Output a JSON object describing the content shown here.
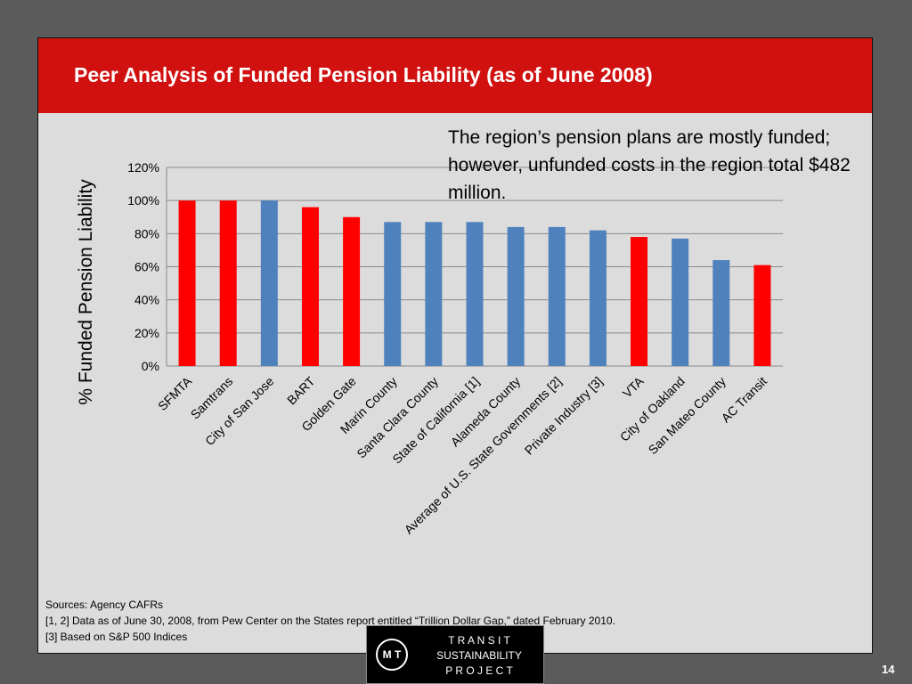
{
  "title": "Peer Analysis of Funded Pension Liability (as of June 2008)",
  "note": "The region’s pension plans are mostly funded; however, unfunded costs in the region total $482 million.",
  "sources": [
    "Sources: Agency CAFRs",
    "[1, 2] Data as of June 30, 2008, from Pew Center on the States report entitled “Trillion Dollar Gap,” dated February 2010.",
    "[3] Based on S&P 500 Indices"
  ],
  "logo": {
    "mark": "M T",
    "line1": "T R A N S I T",
    "line2": "SUSTAINABILITY",
    "line3": "P R O J E C T"
  },
  "page_number": "14",
  "colors": {
    "header": "#d0110f",
    "regional": "#ff0000",
    "peer": "#4f81bd"
  },
  "chart_data": {
    "type": "bar",
    "ylabel": "% Funded Pension Liability",
    "ylim": [
      0,
      120
    ],
    "yticks": [
      0,
      20,
      40,
      60,
      80,
      100,
      120
    ],
    "ytick_format": "percent",
    "grid": true,
    "categories": [
      "SFMTA",
      "Samtrans",
      "City of San Jose",
      "BART",
      "Golden Gate",
      "Marin County",
      "Santa Clara County",
      "State of California [1]",
      "Alameda County",
      "Average of U.S. State Governments [2]",
      "Private Industry [3]",
      "VTA",
      "City of Oakland",
      "San Mateo County",
      "AC Transit"
    ],
    "values": [
      100,
      100,
      100,
      96,
      90,
      87,
      87,
      87,
      84,
      84,
      82,
      78,
      77,
      64,
      61
    ],
    "bar_colors": [
      "#ff0000",
      "#ff0000",
      "#4f81bd",
      "#ff0000",
      "#ff0000",
      "#4f81bd",
      "#4f81bd",
      "#4f81bd",
      "#4f81bd",
      "#4f81bd",
      "#4f81bd",
      "#ff0000",
      "#4f81bd",
      "#4f81bd",
      "#ff0000"
    ]
  }
}
